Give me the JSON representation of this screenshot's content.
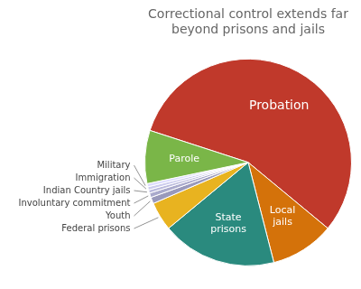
{
  "chart_data": {
    "type": "pie",
    "title": "Correctional control extends far\nbeyond prisons and jails",
    "categories": [
      "Probation",
      "Local\njails",
      "State\nprisons",
      "Federal prisons",
      "Youth",
      "Involuntary commitment",
      "Indian Country jails",
      "Immigration",
      "Military",
      "Parole"
    ],
    "values": [
      56.0,
      10.0,
      18.0,
      4.5,
      1.0,
      0.7,
      0.5,
      0.5,
      0.5,
      8.3
    ],
    "colors": [
      "#c0392b",
      "#d4720a",
      "#2a8a7e",
      "#e8b320",
      "#9999bb",
      "#aaaacc",
      "#bbbbdd",
      "#ccccee",
      "#ddddff",
      "#7ab648"
    ]
  }
}
